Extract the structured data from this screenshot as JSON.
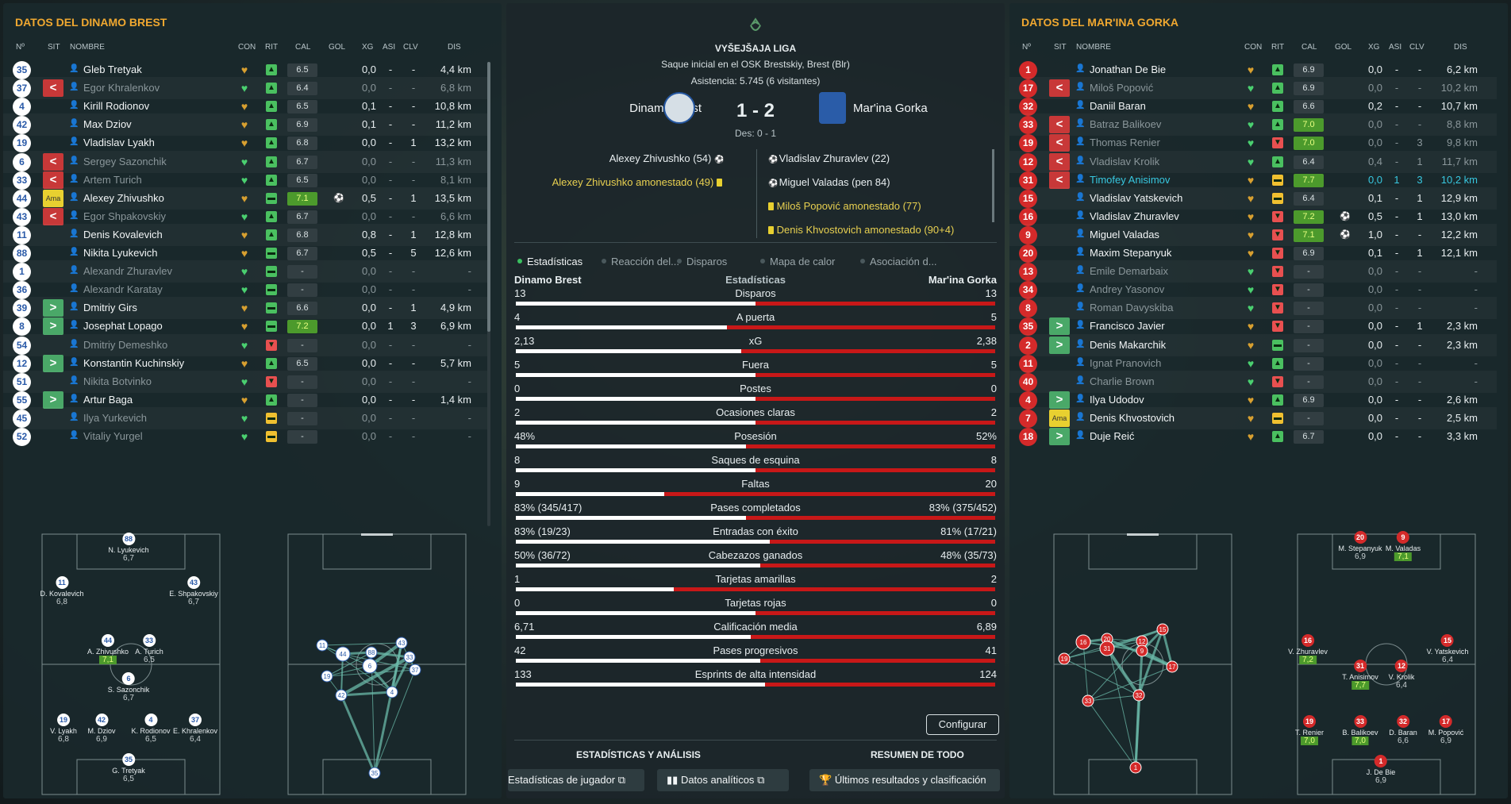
{
  "headers": {
    "num": "Nº",
    "sit": "SIT",
    "nombre": "NOMBRE",
    "con": "CON",
    "rit": "RIT",
    "cal": "CAL",
    "gol": "GOL",
    "xg": "XG",
    "asi": "ASI",
    "clv": "CLV",
    "dis": "DIS"
  },
  "left": {
    "title": "DATOS DEL DINAMO BREST",
    "players": [
      {
        "num": "35",
        "sit": "",
        "name": "Gleb Tretyak",
        "rit": "up",
        "cal": "6.5",
        "good": false,
        "gol": "",
        "xg": "0,0",
        "asi": "-",
        "clv": "-",
        "dis": "4,4 km",
        "dim": false
      },
      {
        "num": "37",
        "sit": "out",
        "name": "Egor Khralenkov",
        "rit": "up",
        "cal": "6.4",
        "good": false,
        "gol": "",
        "xg": "0,0",
        "asi": "-",
        "clv": "-",
        "dis": "6,8 km",
        "dim": true
      },
      {
        "num": "4",
        "sit": "",
        "name": "Kirill Rodionov",
        "rit": "up",
        "cal": "6.5",
        "good": false,
        "gol": "",
        "xg": "0,1",
        "asi": "-",
        "clv": "-",
        "dis": "10,8 km",
        "dim": false
      },
      {
        "num": "42",
        "sit": "",
        "name": "Max Dziov",
        "rit": "up",
        "cal": "6.9",
        "good": false,
        "gol": "",
        "xg": "0,1",
        "asi": "-",
        "clv": "-",
        "dis": "11,2 km",
        "dim": false
      },
      {
        "num": "19",
        "sit": "",
        "name": "Vladislav Lyakh",
        "rit": "up",
        "cal": "6.8",
        "good": false,
        "gol": "",
        "xg": "0,0",
        "asi": "-",
        "clv": "1",
        "dis": "13,2 km",
        "dim": false
      },
      {
        "num": "6",
        "sit": "out",
        "name": "Sergey Sazonchik",
        "rit": "up",
        "cal": "6.7",
        "good": false,
        "gol": "",
        "xg": "0,0",
        "asi": "-",
        "clv": "-",
        "dis": "11,3 km",
        "dim": true
      },
      {
        "num": "33",
        "sit": "out",
        "name": "Artem Turich",
        "rit": "up",
        "cal": "6.5",
        "good": false,
        "gol": "",
        "xg": "0,0",
        "asi": "-",
        "clv": "-",
        "dis": "8,1 km",
        "dim": true
      },
      {
        "num": "44",
        "sit": "card",
        "name": "Alexey Zhivushko",
        "rit": "eq",
        "cal": "7.1",
        "good": true,
        "gol": "⚽",
        "xg": "0,5",
        "asi": "-",
        "clv": "1",
        "dis": "13,5 km",
        "dim": false
      },
      {
        "num": "43",
        "sit": "out",
        "name": "Egor Shpakovskiy",
        "rit": "up",
        "cal": "6.7",
        "good": false,
        "gol": "",
        "xg": "0,0",
        "asi": "-",
        "clv": "-",
        "dis": "6,6 km",
        "dim": true
      },
      {
        "num": "11",
        "sit": "",
        "name": "Denis Kovalevich",
        "rit": "up",
        "cal": "6.8",
        "good": false,
        "gol": "",
        "xg": "0,8",
        "asi": "-",
        "clv": "1",
        "dis": "12,8 km",
        "dim": false
      },
      {
        "num": "88",
        "sit": "",
        "name": "Nikita Lyukevich",
        "rit": "eq",
        "cal": "6.7",
        "good": false,
        "gol": "",
        "xg": "0,5",
        "asi": "-",
        "clv": "5",
        "dis": "12,6 km",
        "dim": false
      },
      {
        "num": "1",
        "sit": "",
        "name": "Alexandr Zhuravlev",
        "rit": "eq",
        "cal": "-",
        "good": false,
        "gol": "",
        "xg": "0,0",
        "asi": "-",
        "clv": "-",
        "dis": "-",
        "dim": true
      },
      {
        "num": "36",
        "sit": "",
        "name": "Alexandr Karatay",
        "rit": "eq",
        "cal": "-",
        "good": false,
        "gol": "",
        "xg": "0,0",
        "asi": "-",
        "clv": "-",
        "dis": "-",
        "dim": true
      },
      {
        "num": "39",
        "sit": "in",
        "name": "Dmitriy Girs",
        "rit": "eq",
        "cal": "6.6",
        "good": false,
        "gol": "",
        "xg": "0,0",
        "asi": "-",
        "clv": "1",
        "dis": "4,9 km",
        "dim": false
      },
      {
        "num": "8",
        "sit": "in",
        "name": "Josephat Lopago",
        "rit": "eq",
        "cal": "7.2",
        "good": true,
        "gol": "",
        "xg": "0,0",
        "asi": "1",
        "clv": "3",
        "dis": "6,9 km",
        "dim": false
      },
      {
        "num": "54",
        "sit": "",
        "name": "Dmitriy Demeshko",
        "rit": "down",
        "cal": "-",
        "good": false,
        "gol": "",
        "xg": "0,0",
        "asi": "-",
        "clv": "-",
        "dis": "-",
        "dim": true
      },
      {
        "num": "12",
        "sit": "in",
        "name": "Konstantin Kuchinskiy",
        "rit": "up",
        "cal": "6.5",
        "good": false,
        "gol": "",
        "xg": "0,0",
        "asi": "-",
        "clv": "-",
        "dis": "5,7 km",
        "dim": false
      },
      {
        "num": "51",
        "sit": "",
        "name": "Nikita Botvinko",
        "rit": "down",
        "cal": "-",
        "good": false,
        "gol": "",
        "xg": "0,0",
        "asi": "-",
        "clv": "-",
        "dis": "-",
        "dim": true
      },
      {
        "num": "55",
        "sit": "in",
        "name": "Artur Baga",
        "rit": "up",
        "cal": "-",
        "good": false,
        "gol": "",
        "xg": "0,0",
        "asi": "-",
        "clv": "-",
        "dis": "1,4 km",
        "dim": false
      },
      {
        "num": "45",
        "sit": "",
        "name": "Ilya Yurkevich",
        "rit": "mid",
        "cal": "-",
        "good": false,
        "gol": "",
        "xg": "0,0",
        "asi": "-",
        "clv": "-",
        "dis": "-",
        "dim": true
      },
      {
        "num": "52",
        "sit": "",
        "name": "Vitaliy Yurgel",
        "rit": "mid",
        "cal": "-",
        "good": false,
        "gol": "",
        "xg": "0,0",
        "asi": "-",
        "clv": "-",
        "dis": "-",
        "dim": true
      }
    ],
    "formation": [
      {
        "num": "88",
        "name": "N. Lyukevich",
        "rating": "6,7",
        "good": false
      },
      {
        "num": "11",
        "name": "D. Kovalevich",
        "rating": "6,8",
        "good": false
      },
      {
        "num": "43",
        "name": "E. Shpakovskiy",
        "rating": "6,7",
        "good": false
      },
      {
        "num": "44",
        "name": "A. Zhivushko",
        "rating": "7,1",
        "good": true
      },
      {
        "num": "33",
        "name": "A. Turich",
        "rating": "6,5",
        "good": false
      },
      {
        "num": "6",
        "name": "S. Sazonchik",
        "rating": "6,7",
        "good": false
      },
      {
        "num": "19",
        "name": "V. Lyakh",
        "rating": "6,8",
        "good": false
      },
      {
        "num": "42",
        "name": "M. Dziov",
        "rating": "6,9",
        "good": false
      },
      {
        "num": "4",
        "name": "K. Rodionov",
        "rating": "6,5",
        "good": false
      },
      {
        "num": "37",
        "name": "E. Khralenkov",
        "rating": "6,4",
        "good": false
      },
      {
        "num": "35",
        "name": "G. Tretyak",
        "rating": "6,5",
        "good": false
      }
    ],
    "passnodes": [
      "11",
      "44",
      "88",
      "6",
      "19",
      "42",
      "4",
      "33",
      "37",
      "43",
      "35"
    ]
  },
  "right": {
    "title": "DATOS DEL MAR'INA GORKA",
    "players": [
      {
        "num": "1",
        "sit": "",
        "name": "Jonathan De Bie",
        "rit": "up",
        "cal": "6.9",
        "good": false,
        "gol": "",
        "xg": "0,0",
        "asi": "-",
        "clv": "-",
        "dis": "6,2 km",
        "dim": false
      },
      {
        "num": "17",
        "sit": "out",
        "name": "Miloš Popović",
        "rit": "up",
        "cal": "6.9",
        "good": false,
        "gol": "",
        "xg": "0,0",
        "asi": "-",
        "clv": "-",
        "dis": "10,2 km",
        "dim": true
      },
      {
        "num": "32",
        "sit": "",
        "name": "Daniil Baran",
        "rit": "up",
        "cal": "6.6",
        "good": false,
        "gol": "",
        "xg": "0,2",
        "asi": "-",
        "clv": "-",
        "dis": "10,7 km",
        "dim": false
      },
      {
        "num": "33",
        "sit": "out",
        "name": "Batraz Balikoev",
        "rit": "up",
        "cal": "7.0",
        "good": true,
        "gol": "",
        "xg": "0,0",
        "asi": "-",
        "clv": "-",
        "dis": "8,8 km",
        "dim": true
      },
      {
        "num": "19",
        "sit": "out",
        "name": "Thomas Renier",
        "rit": "down",
        "cal": "7.0",
        "good": true,
        "gol": "",
        "xg": "0,0",
        "asi": "-",
        "clv": "3",
        "dis": "9,8 km",
        "dim": true
      },
      {
        "num": "12",
        "sit": "out",
        "name": "Vladislav Krolik",
        "rit": "up",
        "cal": "6.4",
        "good": false,
        "gol": "",
        "xg": "0,4",
        "asi": "-",
        "clv": "1",
        "dis": "11,7 km",
        "dim": true
      },
      {
        "num": "31",
        "sit": "out",
        "name": "Timofey Anisimov",
        "rit": "mid",
        "cal": "7.7",
        "good": true,
        "gol": "",
        "xg": "0,0",
        "asi": "1",
        "clv": "3",
        "dis": "10,2 km",
        "dim": false,
        "cyan": true
      },
      {
        "num": "15",
        "sit": "",
        "name": "Vladislav Yatskevich",
        "rit": "mid",
        "cal": "6.4",
        "good": false,
        "gol": "",
        "xg": "0,1",
        "asi": "-",
        "clv": "1",
        "dis": "12,9 km",
        "dim": false
      },
      {
        "num": "16",
        "sit": "",
        "name": "Vladislav Zhuravlev",
        "rit": "down",
        "cal": "7.2",
        "good": true,
        "gol": "⚽",
        "xg": "0,5",
        "asi": "-",
        "clv": "1",
        "dis": "13,0 km",
        "dim": false
      },
      {
        "num": "9",
        "sit": "",
        "name": "Miguel Valadas",
        "rit": "down",
        "cal": "7.1",
        "good": true,
        "gol": "⚽",
        "xg": "1,0",
        "asi": "-",
        "clv": "-",
        "dis": "12,2 km",
        "dim": false
      },
      {
        "num": "20",
        "sit": "",
        "name": "Maxim Stepanyuk",
        "rit": "down",
        "cal": "6.9",
        "good": false,
        "gol": "",
        "xg": "0,1",
        "asi": "-",
        "clv": "1",
        "dis": "12,1 km",
        "dim": false
      },
      {
        "num": "13",
        "sit": "",
        "name": "Emile Demarbaix",
        "rit": "down",
        "cal": "-",
        "good": false,
        "gol": "",
        "xg": "0,0",
        "asi": "-",
        "clv": "-",
        "dis": "-",
        "dim": true
      },
      {
        "num": "34",
        "sit": "",
        "name": "Andrey Yasonov",
        "rit": "down",
        "cal": "-",
        "good": false,
        "gol": "",
        "xg": "0,0",
        "asi": "-",
        "clv": "-",
        "dis": "-",
        "dim": true
      },
      {
        "num": "8",
        "sit": "",
        "name": "Roman Davyskiba",
        "rit": "down",
        "cal": "-",
        "good": false,
        "gol": "",
        "xg": "0,0",
        "asi": "-",
        "clv": "-",
        "dis": "-",
        "dim": true
      },
      {
        "num": "35",
        "sit": "in",
        "name": "Francisco Javier",
        "rit": "down",
        "cal": "-",
        "good": false,
        "gol": "",
        "xg": "0,0",
        "asi": "-",
        "clv": "1",
        "dis": "2,3 km",
        "dim": false
      },
      {
        "num": "2",
        "sit": "in",
        "name": "Denis Makarchik",
        "rit": "eq",
        "cal": "-",
        "good": false,
        "gol": "",
        "xg": "0,0",
        "asi": "-",
        "clv": "-",
        "dis": "2,3 km",
        "dim": false
      },
      {
        "num": "11",
        "sit": "",
        "name": "Ignat Pranovich",
        "rit": "up",
        "cal": "-",
        "good": false,
        "gol": "",
        "xg": "0,0",
        "asi": "-",
        "clv": "-",
        "dis": "-",
        "dim": true
      },
      {
        "num": "40",
        "sit": "",
        "name": "Charlie Brown",
        "rit": "down",
        "cal": "-",
        "good": false,
        "gol": "",
        "xg": "0,0",
        "asi": "-",
        "clv": "-",
        "dis": "-",
        "dim": true
      },
      {
        "num": "4",
        "sit": "in",
        "name": "Ilya Udodov",
        "rit": "up",
        "cal": "6.9",
        "good": false,
        "gol": "",
        "xg": "0,0",
        "asi": "-",
        "clv": "-",
        "dis": "2,6 km",
        "dim": false
      },
      {
        "num": "7",
        "sit": "card",
        "name": "Denis Khvostovich",
        "rit": "mid",
        "cal": "-",
        "good": false,
        "gol": "",
        "xg": "0,0",
        "asi": "-",
        "clv": "-",
        "dis": "2,5 km",
        "dim": false
      },
      {
        "num": "18",
        "sit": "in",
        "name": "Duje Reić",
        "rit": "up",
        "cal": "6.7",
        "good": false,
        "gol": "",
        "xg": "0,0",
        "asi": "-",
        "clv": "-",
        "dis": "3,3 km",
        "dim": false
      }
    ],
    "formation": [
      {
        "num": "20",
        "name": "M. Stepanyuk",
        "rating": "6,9",
        "good": false
      },
      {
        "num": "9",
        "name": "M. Valadas",
        "rating": "7,1",
        "good": true
      },
      {
        "num": "16",
        "name": "V. Zhuravlev",
        "rating": "7,2",
        "good": true
      },
      {
        "num": "15",
        "name": "V. Yatskevich",
        "rating": "6,4",
        "good": false
      },
      {
        "num": "31",
        "name": "T. Anisimov",
        "rating": "7,7",
        "good": true
      },
      {
        "num": "12",
        "name": "V. Krolik",
        "rating": "6,4",
        "good": false
      },
      {
        "num": "19",
        "name": "T. Renier",
        "rating": "7,0",
        "good": true
      },
      {
        "num": "33",
        "name": "B. Balikoev",
        "rating": "7,0",
        "good": true
      },
      {
        "num": "32",
        "name": "D. Baran",
        "rating": "6,6",
        "good": false
      },
      {
        "num": "17",
        "name": "M. Popović",
        "rating": "6,9",
        "good": false
      },
      {
        "num": "1",
        "name": "J. De Bie",
        "rating": "6,9",
        "good": false
      }
    ],
    "passnodes": [
      "19",
      "16",
      "20",
      "31",
      "12",
      "9",
      "15",
      "17",
      "33",
      "32",
      "1"
    ]
  },
  "center": {
    "league": "VYŠEJŠAJA LIGA",
    "kickoff": "Saque inicial en el OSK Brestskiy, Brest  (Blr)",
    "attendance": "Asistencia: 5.745 (6 visitantes)",
    "home": "Dinamo Brest",
    "away": "Mar'ina Gorka",
    "score": "1 - 2",
    "halftime": "Des: 0 - 1",
    "events_home": [
      {
        "text": "Alexey Zhivushko (54)",
        "type": "goal"
      },
      {
        "text": "Alexey Zhivushko amonestado (49)",
        "type": "yellow"
      }
    ],
    "events_away": [
      {
        "text": "Vladislav Zhuravlev (22)",
        "type": "goal"
      },
      {
        "text": "Miguel Valadas (pen 84)",
        "type": "goal"
      },
      {
        "text": "Miloš Popović amonestado (77)",
        "type": "yellow"
      },
      {
        "text": "Denis Khvostovich amonestado (90+4)",
        "type": "yellow"
      }
    ],
    "tabs": [
      "Estadísticas",
      "Reacción del...",
      "Disparos",
      "Mapa de calor",
      "Asociación d..."
    ],
    "stats_header": {
      "home": "Dinamo Brest",
      "title": "Estadísticas",
      "away": "Mar'ina Gorka"
    },
    "stats": [
      {
        "label": "Disparos",
        "home": "13",
        "away": "13",
        "share": 0.5
      },
      {
        "label": "A puerta",
        "home": "4",
        "away": "5",
        "share": 0.44
      },
      {
        "label": "xG",
        "home": "2,13",
        "away": "2,38",
        "share": 0.47
      },
      {
        "label": "Fuera",
        "home": "5",
        "away": "5",
        "share": 0.5
      },
      {
        "label": "Postes",
        "home": "0",
        "away": "0",
        "share": 0.5
      },
      {
        "label": "Ocasiones claras",
        "home": "2",
        "away": "2",
        "share": 0.5
      },
      {
        "label": "Posesión",
        "home": "48%",
        "away": "52%",
        "share": 0.48
      },
      {
        "label": "Saques de esquina",
        "home": "8",
        "away": "8",
        "share": 0.5
      },
      {
        "label": "Faltas",
        "home": "9",
        "away": "20",
        "share": 0.31
      },
      {
        "label": "Pases completados",
        "home": "83% (345/417)",
        "away": "83% (375/452)",
        "share": 0.48
      },
      {
        "label": "Entradas con éxito",
        "home": "83% (19/23)",
        "away": "81% (17/21)",
        "share": 0.53
      },
      {
        "label": "Cabezazos ganados",
        "home": "50% (36/72)",
        "away": "48% (35/73)",
        "share": 0.51
      },
      {
        "label": "Tarjetas amarillas",
        "home": "1",
        "away": "2",
        "share": 0.33
      },
      {
        "label": "Tarjetas rojas",
        "home": "0",
        "away": "0",
        "share": 0.5
      },
      {
        "label": "Calificación media",
        "home": "6,71",
        "away": "6,89",
        "share": 0.49
      },
      {
        "label": "Pases progresivos",
        "home": "42",
        "away": "41",
        "share": 0.51
      },
      {
        "label": "Esprints de alta intensidad",
        "home": "133",
        "away": "124",
        "share": 0.52
      }
    ],
    "configure": "Configurar",
    "section_left": "ESTADÍSTICAS Y ANÁLISIS",
    "section_right": "RESUMEN DE TODO",
    "btn_player": "Estadísticas de jugador",
    "btn_data": "Datos analíticos",
    "btn_results": "Últimos resultados y clasificación"
  },
  "colors": {
    "accent": "#f0a830",
    "home_bar": "#ffffff",
    "away_bar": "#c81818",
    "good_rating": "#4c9a2c"
  }
}
